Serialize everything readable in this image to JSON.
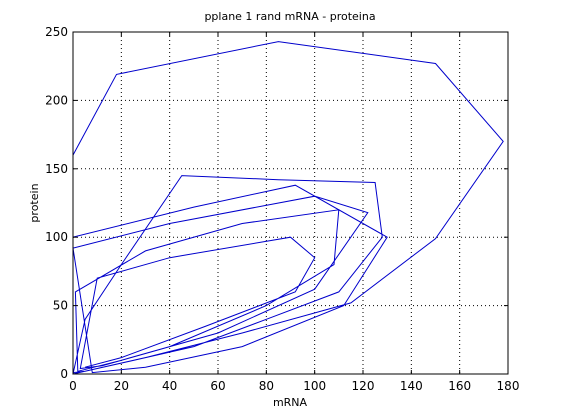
{
  "chart_data": {
    "type": "line",
    "title": "pplane 1 rand mRNA - proteina",
    "xlabel": "mRNA",
    "ylabel": "protein",
    "xlim": [
      0,
      180
    ],
    "ylim": [
      0,
      250
    ],
    "xticks": [
      0,
      20,
      40,
      60,
      80,
      100,
      120,
      140,
      160,
      180
    ],
    "yticks": [
      0,
      50,
      100,
      150,
      200,
      250
    ],
    "grid": true,
    "line_color": "#0000cc",
    "series": [
      {
        "points": [
          [
            0,
            160
          ],
          [
            18,
            219
          ],
          [
            85,
            243
          ],
          [
            150,
            227
          ],
          [
            178,
            170
          ],
          [
            150,
            99
          ],
          [
            115,
            52
          ],
          [
            70,
            30
          ],
          [
            30,
            12
          ],
          [
            10,
            4
          ],
          [
            0,
            0
          ],
          [
            5,
            40
          ],
          [
            20,
            80
          ],
          [
            45,
            145
          ],
          [
            85,
            142
          ],
          [
            125,
            140
          ],
          [
            128,
            100
          ],
          [
            110,
            60
          ],
          [
            80,
            40
          ],
          [
            50,
            20
          ],
          [
            20,
            8
          ],
          [
            5,
            2
          ],
          [
            0,
            1
          ],
          [
            0,
            100
          ],
          [
            50,
            122
          ],
          [
            92,
            138
          ],
          [
            130,
            100
          ],
          [
            112,
            50
          ],
          [
            70,
            20
          ],
          [
            30,
            5
          ],
          [
            8,
            1
          ],
          [
            0,
            92
          ],
          [
            40,
            110
          ],
          [
            100,
            130
          ],
          [
            122,
            118
          ],
          [
            100,
            62
          ],
          [
            60,
            30
          ],
          [
            20,
            10
          ],
          [
            2,
            2
          ],
          [
            1,
            60
          ],
          [
            30,
            90
          ],
          [
            70,
            110
          ],
          [
            110,
            120
          ],
          [
            108,
            80
          ],
          [
            80,
            50
          ],
          [
            40,
            20
          ],
          [
            12,
            6
          ],
          [
            3,
            4
          ],
          [
            10,
            70
          ],
          [
            40,
            85
          ],
          [
            90,
            100
          ],
          [
            100,
            85
          ],
          [
            92,
            60
          ],
          [
            55,
            35
          ],
          [
            20,
            12
          ],
          [
            5,
            5
          ]
        ]
      }
    ]
  }
}
